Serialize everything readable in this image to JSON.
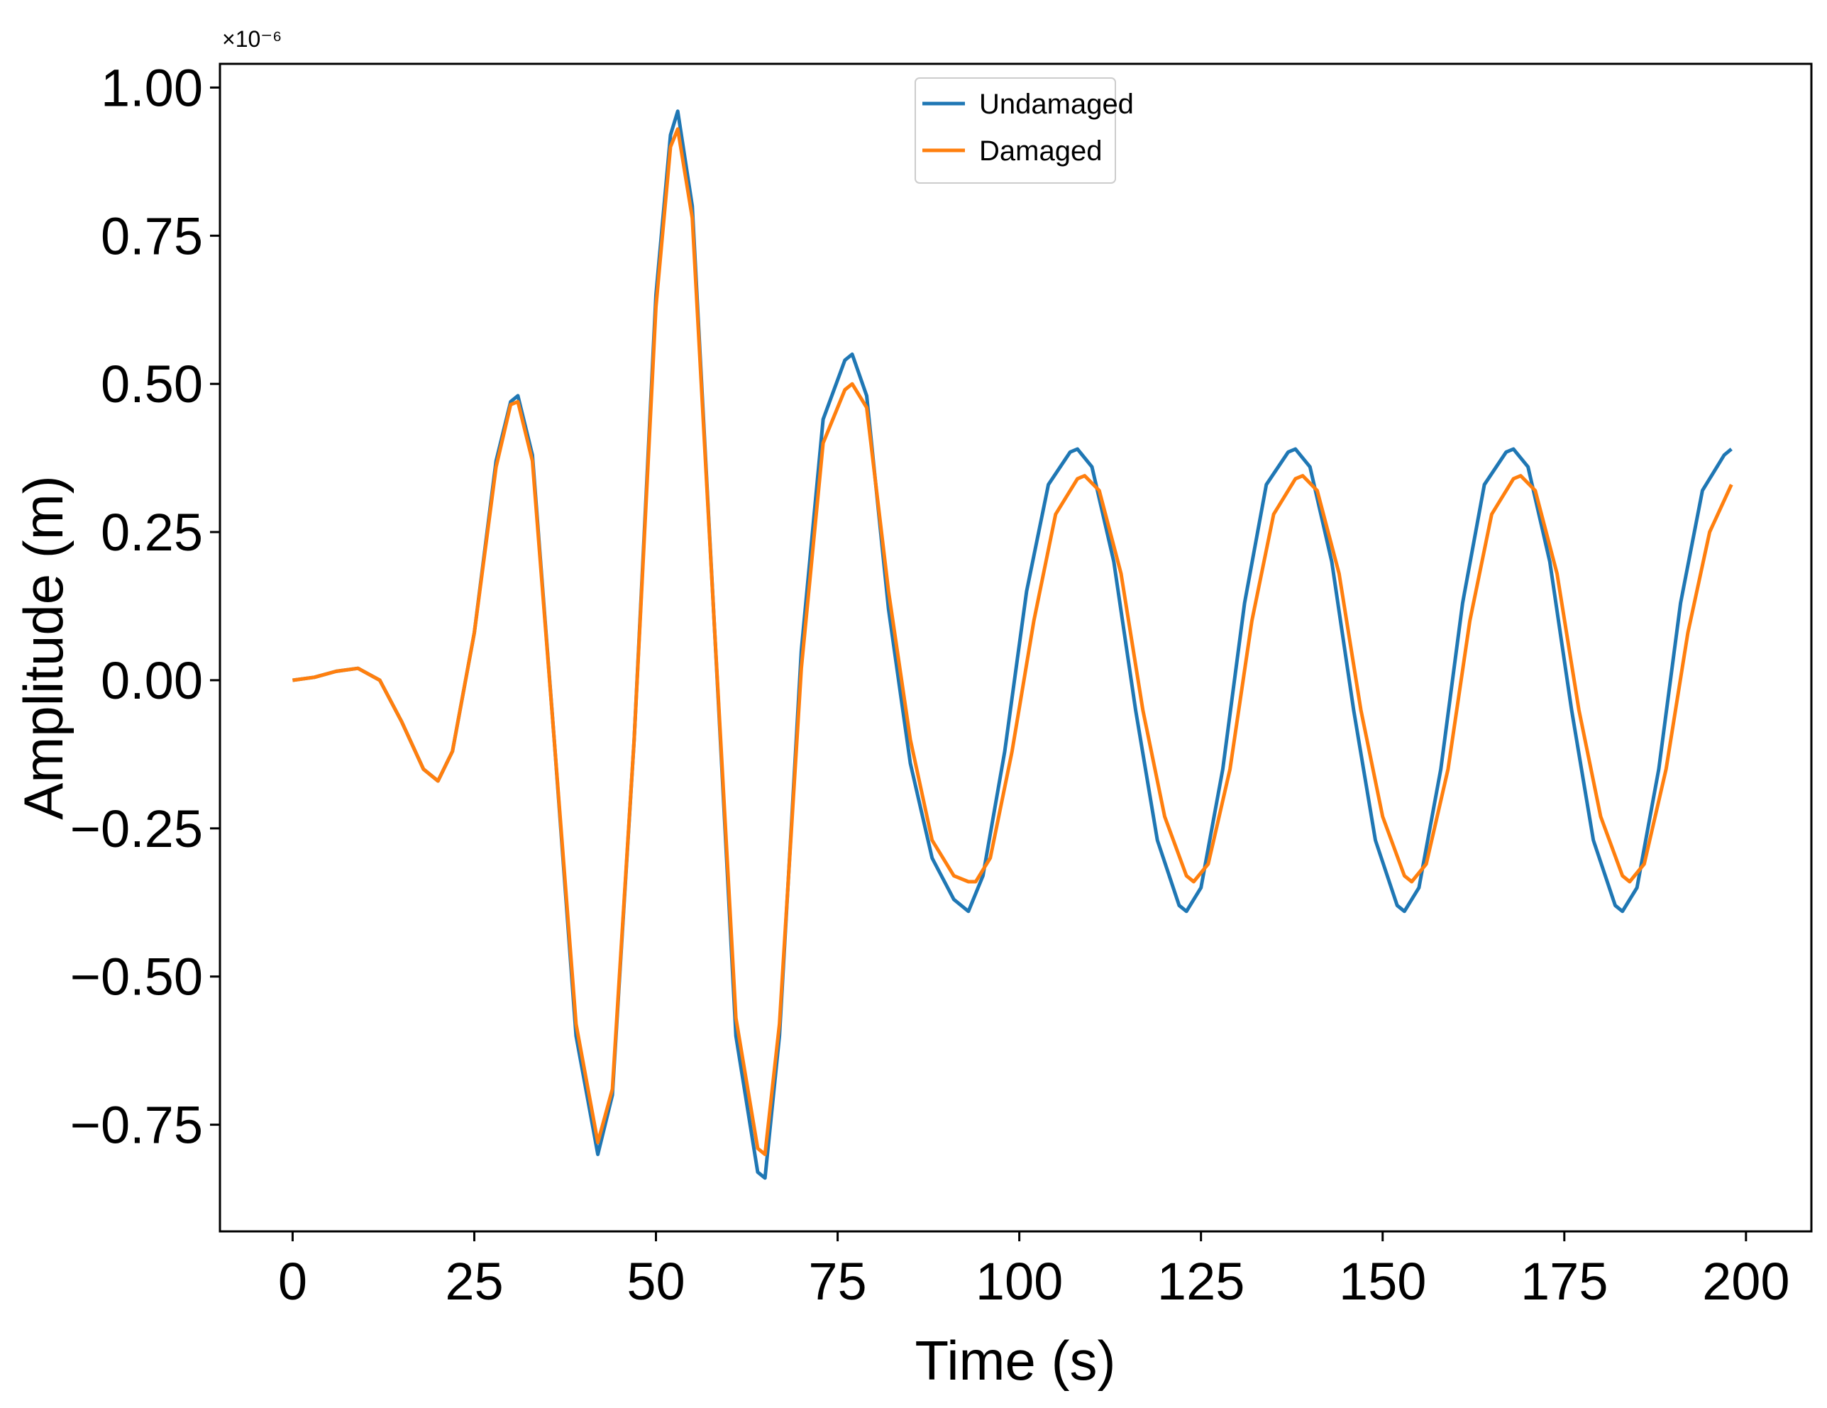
{
  "chart_data": {
    "type": "line",
    "title": "",
    "xlabel": "Time (s)",
    "ylabel": "Amplitude (m)",
    "y_offset_label": "×10⁻⁶",
    "y_multiplier": 1e-06,
    "xlim": [
      -10,
      209
    ],
    "ylim": [
      -0.93,
      1.04
    ],
    "xticks": [
      0,
      25,
      50,
      75,
      100,
      125,
      150,
      175,
      200
    ],
    "xtick_labels": [
      "0",
      "25",
      "50",
      "75",
      "100",
      "125",
      "150",
      "175",
      "200"
    ],
    "yticks": [
      -0.75,
      -0.5,
      -0.25,
      0.0,
      0.25,
      0.5,
      0.75,
      1.0
    ],
    "ytick_labels": [
      "−0.75",
      "−0.50",
      "−0.25",
      "0.00",
      "0.25",
      "0.50",
      "0.75",
      "1.00"
    ],
    "grid": false,
    "legend_position": "top-center",
    "series": [
      {
        "name": "Undamaged",
        "color": "#1f77b4",
        "x": [
          0,
          3,
          6,
          9,
          12,
          15,
          18,
          20,
          22,
          25,
          28,
          30,
          31,
          33,
          36,
          39,
          42,
          44,
          47,
          50,
          52,
          53,
          55,
          58,
          61,
          64,
          65,
          67,
          70,
          73,
          76,
          77,
          79,
          82,
          85,
          88,
          91,
          93,
          95,
          98,
          101,
          104,
          107,
          108,
          110,
          113,
          116,
          119,
          122,
          123,
          125,
          128,
          131,
          134,
          137,
          138,
          140,
          143,
          146,
          149,
          152,
          153,
          155,
          158,
          161,
          164,
          167,
          168,
          170,
          173,
          176,
          179,
          182,
          183,
          185,
          188,
          191,
          194,
          197,
          198
        ],
        "y": [
          0.0,
          0.005,
          0.015,
          0.02,
          0.0,
          -0.07,
          -0.15,
          -0.17,
          -0.12,
          0.08,
          0.37,
          0.47,
          0.48,
          0.38,
          -0.1,
          -0.6,
          -0.8,
          -0.7,
          -0.1,
          0.65,
          0.92,
          0.96,
          0.8,
          0.1,
          -0.6,
          -0.83,
          -0.84,
          -0.6,
          0.05,
          0.44,
          0.54,
          0.55,
          0.48,
          0.12,
          -0.14,
          -0.3,
          -0.37,
          -0.39,
          -0.33,
          -0.12,
          0.15,
          0.33,
          0.385,
          0.39,
          0.36,
          0.2,
          -0.05,
          -0.27,
          -0.38,
          -0.39,
          -0.35,
          -0.15,
          0.13,
          0.33,
          0.385,
          0.39,
          0.36,
          0.2,
          -0.05,
          -0.27,
          -0.38,
          -0.39,
          -0.35,
          -0.15,
          0.13,
          0.33,
          0.385,
          0.39,
          0.36,
          0.2,
          -0.05,
          -0.27,
          -0.38,
          -0.39,
          -0.35,
          -0.15,
          0.13,
          0.32,
          0.38,
          0.39
        ]
      },
      {
        "name": "Damaged",
        "color": "#ff7f0e",
        "x": [
          0,
          3,
          6,
          9,
          12,
          15,
          18,
          20,
          22,
          25,
          28,
          30,
          31,
          33,
          36,
          39,
          42,
          44,
          47,
          50,
          52,
          53,
          55,
          58,
          61,
          64,
          65,
          67,
          70,
          73,
          76,
          77,
          79,
          82,
          85,
          88,
          91,
          93,
          94,
          96,
          99,
          102,
          105,
          108,
          109,
          111,
          114,
          117,
          120,
          123,
          124,
          126,
          129,
          132,
          135,
          138,
          139,
          141,
          144,
          147,
          150,
          153,
          154,
          156,
          159,
          162,
          165,
          168,
          169,
          171,
          174,
          177,
          180,
          183,
          184,
          186,
          189,
          192,
          195,
          198
        ],
        "y": [
          0.0,
          0.005,
          0.015,
          0.02,
          0.0,
          -0.07,
          -0.15,
          -0.17,
          -0.12,
          0.08,
          0.36,
          0.465,
          0.47,
          0.37,
          -0.1,
          -0.58,
          -0.78,
          -0.69,
          -0.1,
          0.63,
          0.9,
          0.93,
          0.78,
          0.1,
          -0.57,
          -0.79,
          -0.8,
          -0.58,
          0.02,
          0.4,
          0.49,
          0.5,
          0.46,
          0.15,
          -0.1,
          -0.27,
          -0.33,
          -0.34,
          -0.34,
          -0.3,
          -0.12,
          0.1,
          0.28,
          0.34,
          0.345,
          0.32,
          0.18,
          -0.05,
          -0.23,
          -0.33,
          -0.34,
          -0.31,
          -0.15,
          0.1,
          0.28,
          0.34,
          0.345,
          0.32,
          0.18,
          -0.05,
          -0.23,
          -0.33,
          -0.34,
          -0.31,
          -0.15,
          0.1,
          0.28,
          0.34,
          0.345,
          0.32,
          0.18,
          -0.05,
          -0.23,
          -0.33,
          -0.34,
          -0.31,
          -0.15,
          0.08,
          0.25,
          0.33
        ]
      }
    ]
  }
}
